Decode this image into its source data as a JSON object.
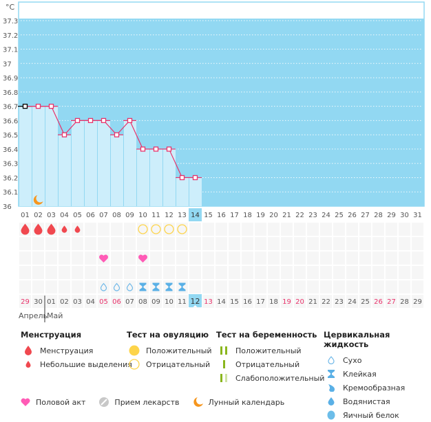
{
  "chart_data": {
    "type": "line",
    "unit_label": "°C",
    "y_ticks": [
      "37.3",
      "37.2",
      "37.1",
      "37",
      "36.9",
      "36.8",
      "36.7",
      "36.6",
      "36.5",
      "36.4",
      "36.3",
      "36.2",
      "36.1",
      "36"
    ],
    "ylim": [
      36.0,
      37.3
    ],
    "x_cycle_days": [
      "01",
      "02",
      "03",
      "04",
      "05",
      "06",
      "07",
      "08",
      "09",
      "10",
      "11",
      "12",
      "13",
      "14",
      "15",
      "16",
      "17",
      "18",
      "19",
      "20",
      "21",
      "22",
      "23",
      "24",
      "25",
      "26",
      "27",
      "28",
      "29",
      "30",
      "31"
    ],
    "current_cycle_day": "14",
    "series": [
      {
        "name": "Базальная температура",
        "days": [
          "01",
          "02",
          "03",
          "04",
          "05",
          "06",
          "07",
          "08",
          "09",
          "10",
          "11",
          "12",
          "13",
          "14"
        ],
        "values": [
          36.7,
          36.7,
          36.7,
          36.5,
          36.6,
          36.6,
          36.6,
          36.5,
          36.6,
          36.4,
          36.4,
          36.4,
          36.2,
          36.2
        ]
      }
    ],
    "moon_marker_day": "02",
    "colors": {
      "plot_bg": "#92d8f2",
      "bar_fill": "#cdeefb",
      "line": "#e8336b",
      "first_point": "#000000",
      "highlight_day": "#92d8f2",
      "weekend_text": "#e8336b"
    }
  },
  "symptoms": {
    "menstruation": [
      "heavy",
      "heavy",
      "heavy",
      "light",
      "light"
    ],
    "ovulation_tests": {
      "days": [
        "10",
        "11",
        "12",
        "13"
      ],
      "result": "negative"
    },
    "intercourse_days": [
      "07",
      "10"
    ],
    "cervical_fluid": [
      {
        "day": "07",
        "type": "dry"
      },
      {
        "day": "08",
        "type": "dry"
      },
      {
        "day": "09",
        "type": "dry"
      },
      {
        "day": "10",
        "type": "sticky"
      },
      {
        "day": "11",
        "type": "sticky"
      },
      {
        "day": "12",
        "type": "sticky"
      },
      {
        "day": "13",
        "type": "sticky"
      }
    ]
  },
  "calendar": {
    "dates": [
      "29",
      "30",
      "01",
      "02",
      "03",
      "04",
      "05",
      "06",
      "07",
      "08",
      "09",
      "10",
      "11",
      "12",
      "13",
      "14",
      "15",
      "16",
      "17",
      "18",
      "19",
      "20",
      "21",
      "22",
      "23",
      "24",
      "25",
      "26",
      "27",
      "28",
      "29"
    ],
    "weekend_indexes": [
      0,
      6,
      7,
      14,
      20,
      21,
      27,
      28
    ],
    "today_index": 13,
    "months": [
      {
        "label": "Апрель"
      },
      {
        "label": "Май"
      }
    ]
  },
  "legend": {
    "menstruation": {
      "title": "Менструация",
      "items": [
        "Менструация",
        "Небольшие выделения"
      ]
    },
    "ovulation": {
      "title": "Тест на овуляцию",
      "items": [
        "Положительный",
        "Отрицательный"
      ]
    },
    "pregnancy": {
      "title": "Тест на беременность",
      "items": [
        "Положительный",
        "Отрицательный",
        "Слабоположительный"
      ]
    },
    "fluid": {
      "title": "Цервикальная жидкость",
      "items": [
        "Сухо",
        "Клейкая",
        "Кремообразная",
        "Водянистая",
        "Яичный белок"
      ]
    },
    "bottom": [
      "Половой акт",
      "Прием лекарств",
      "Лунный календарь"
    ]
  }
}
